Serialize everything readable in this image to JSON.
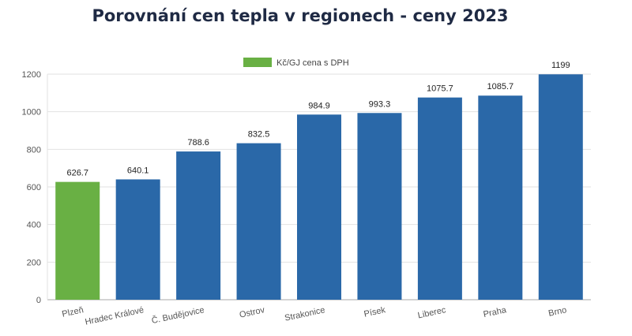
{
  "chart_data": {
    "type": "bar",
    "title": "Porovnání cen tepla v regionech - ceny 2023",
    "categories": [
      "Plzeň",
      "Hradec Králové",
      "Č. Budějovice",
      "Ostrov",
      "Strakonice",
      "Písek",
      "Liberec",
      "Praha",
      "Brno"
    ],
    "series": [
      {
        "name": "Kč/GJ cena s DPH",
        "values": [
          626.7,
          640.1,
          788.6,
          832.5,
          984.9,
          993.3,
          1075.7,
          1085.7,
          1199
        ]
      }
    ],
    "ylim": [
      0,
      1200
    ],
    "yticks": [
      0,
      200,
      400,
      600,
      800,
      1000,
      1200
    ],
    "grid": true,
    "legend": "top-center",
    "colors": {
      "default": "#2a68a8",
      "highlight": "#69b044"
    },
    "highlight_category": "Plzeň"
  }
}
